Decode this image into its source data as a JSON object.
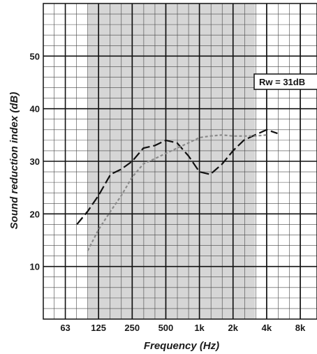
{
  "chart_data": {
    "type": "line",
    "xscale": "log",
    "xlabel": "Frequency (Hz)",
    "ylabel": "Sound reduction index (dB)",
    "xlim": [
      40,
      11300
    ],
    "ylim": [
      0,
      60
    ],
    "grid": true,
    "shaded_band": [
      100,
      3150
    ],
    "x_ticks": [
      {
        "value": 63,
        "label": "63"
      },
      {
        "value": 125,
        "label": "125"
      },
      {
        "value": 250,
        "label": "250"
      },
      {
        "value": 500,
        "label": "500"
      },
      {
        "value": 1000,
        "label": "1k"
      },
      {
        "value": 2000,
        "label": "2k"
      },
      {
        "value": 4000,
        "label": "4k"
      },
      {
        "value": 8000,
        "label": "8k"
      }
    ],
    "y_ticks": [
      {
        "value": 10,
        "label": "10"
      },
      {
        "value": 20,
        "label": "20"
      },
      {
        "value": 30,
        "label": "30"
      },
      {
        "value": 40,
        "label": "40"
      },
      {
        "value": 50,
        "label": "50"
      }
    ],
    "annotation": "Rw = 31dB",
    "series": [
      {
        "style": "dashed",
        "color": "#111111",
        "x": [
          80,
          100,
          125,
          160,
          200,
          250,
          315,
          400,
          500,
          630,
          800,
          1000,
          1250,
          1600,
          2000,
          2500,
          3150,
          4000,
          5000
        ],
        "y": [
          18,
          20.5,
          23.5,
          27.5,
          28.5,
          30,
          32.5,
          33,
          34,
          33.5,
          31,
          28,
          27.5,
          29.5,
          32,
          34,
          35,
          36,
          35.3
        ]
      },
      {
        "style": "dotted",
        "color": "#8a8a8a",
        "x": [
          100,
          125,
          160,
          200,
          250,
          315,
          400,
          500,
          630,
          800,
          1000,
          1250,
          1600,
          2000,
          2500,
          3150,
          4000
        ],
        "y": [
          13,
          17,
          20.5,
          23.5,
          27,
          29.5,
          30.5,
          31.5,
          32.5,
          33.5,
          34.5,
          34.8,
          35,
          34.8,
          34.8,
          34.8,
          35
        ]
      }
    ]
  }
}
